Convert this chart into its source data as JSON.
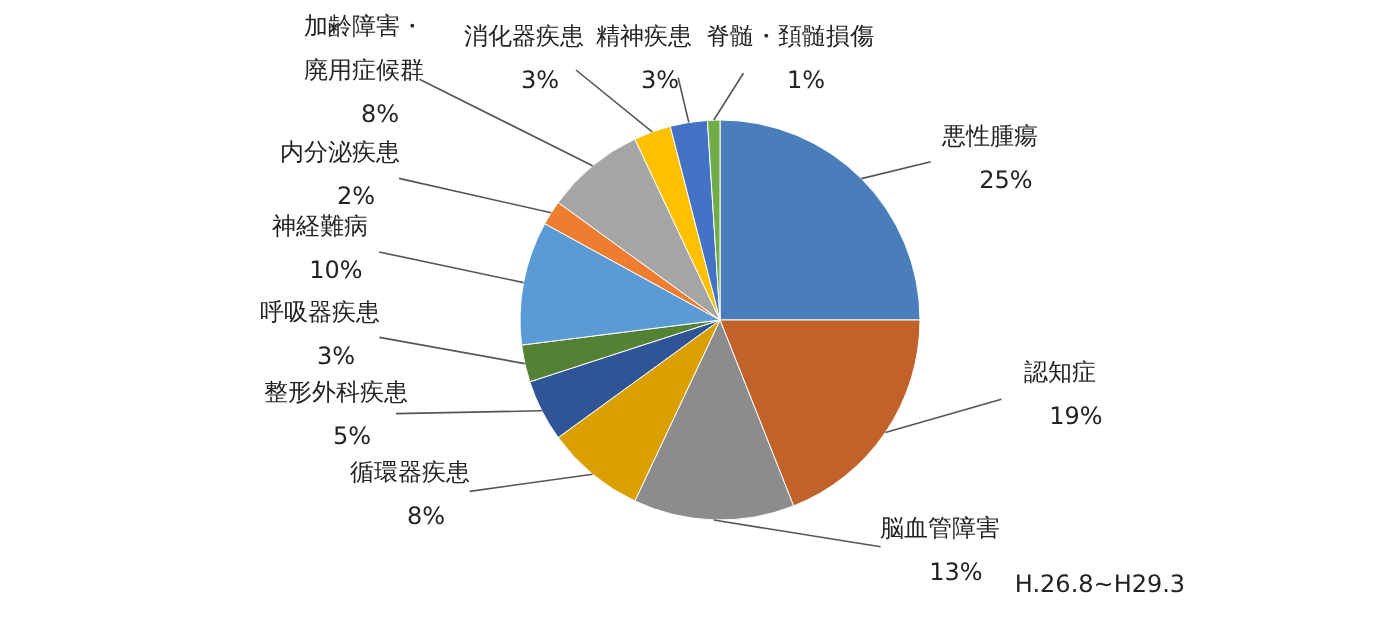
{
  "chart_data": {
    "type": "pie",
    "categories": [
      "悪性腫瘍",
      "認知症",
      "脳血管障害",
      "循環器疾患",
      "整形外科疾患",
      "呼吸器疾患",
      "神経難病",
      "内分泌疾患",
      "加齢障害・廃用症候群",
      "消化器疾患",
      "精神疾患",
      "脊髄・頚髄損傷"
    ],
    "values": [
      25,
      19,
      13,
      8,
      5,
      3,
      10,
      2,
      8,
      3,
      3,
      1
    ],
    "colors": [
      "#4a7ebb",
      "#c0622a",
      "#8c8c8c",
      "#d9a000",
      "#2f5597",
      "#548235",
      "#5b9bd5",
      "#ed7d31",
      "#a5a5a5",
      "#ffc000",
      "#4472c4",
      "#70ad47"
    ],
    "value_labels": [
      "25%",
      "19%",
      "13%",
      "8%",
      "5%",
      "3%",
      "10%",
      "2%",
      "8%",
      "3%",
      "3%",
      "1%"
    ],
    "annotations": [
      "H.26.8~H29.3"
    ]
  }
}
